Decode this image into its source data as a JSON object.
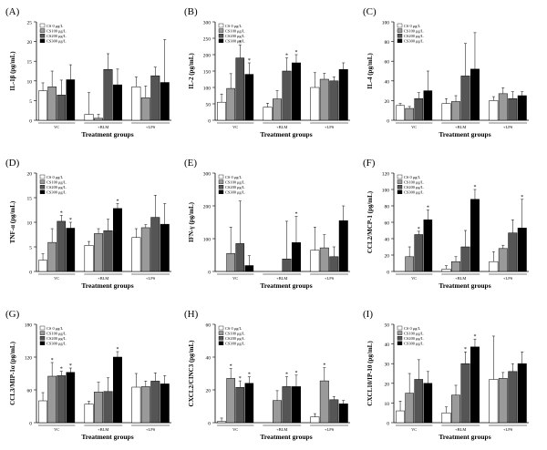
{
  "figure": {
    "series_names": [
      "CS 0 μg/L",
      "CS100 μg/L",
      "CS200 μg/L",
      "CS300 μg/L"
    ],
    "series_colors": [
      "#ffffff",
      "#9a9a9a",
      "#555555",
      "#000000"
    ],
    "groups": [
      "VC",
      "+BLM",
      "+LPS"
    ],
    "xlabel": "Treatment groups"
  },
  "chart_data": [
    {
      "type": "bar",
      "panel": "(A)",
      "ylabel": "IL-1β (pg/mL)",
      "ylim": [
        0,
        25
      ],
      "yticks": [
        0,
        5,
        10,
        15,
        20,
        25
      ],
      "categories": [
        "VC",
        "+BLM",
        "+LPS"
      ],
      "series": [
        {
          "name": "CS 0 μg/L",
          "values": [
            7.5,
            1.5,
            8.5
          ],
          "err": [
            2,
            5.5,
            2.5
          ]
        },
        {
          "name": "CS100 μg/L",
          "values": [
            8.5,
            0.5,
            5.7
          ],
          "err": [
            4,
            1,
            3
          ]
        },
        {
          "name": "CS200 μg/L",
          "values": [
            6.4,
            12.9,
            11.3
          ],
          "err": [
            3.8,
            4,
            2.2
          ]
        },
        {
          "name": "CS300 μg/L",
          "values": [
            10.3,
            9.0,
            9.6
          ],
          "err": [
            3.8,
            4,
            10.9
          ]
        }
      ],
      "sig": [
        [
          false,
          false,
          false,
          false
        ],
        [
          false,
          false,
          false,
          false
        ],
        [
          false,
          false,
          false,
          false
        ]
      ]
    },
    {
      "type": "bar",
      "panel": "(B)",
      "ylabel": "IL-2 (pg/mL)",
      "ylim": [
        0,
        300
      ],
      "yticks": [
        0,
        50,
        100,
        150,
        200,
        250,
        300
      ],
      "categories": [
        "VC",
        "+BLM",
        "+LPS"
      ],
      "series": [
        {
          "name": "CS 0 μg/L",
          "values": [
            55,
            40,
            100
          ],
          "err": [
            25,
            12,
            45
          ]
        },
        {
          "name": "CS100 μg/L",
          "values": [
            97,
            65,
            125
          ],
          "err": [
            45,
            25,
            18
          ]
        },
        {
          "name": "CS200 μg/L",
          "values": [
            190,
            150,
            120
          ],
          "err": [
            40,
            40,
            12
          ]
        },
        {
          "name": "CS300 μg/L",
          "values": [
            140,
            175,
            155
          ],
          "err": [
            35,
            25,
            20
          ]
        }
      ],
      "sig": [
        [
          false,
          false,
          true,
          true
        ],
        [
          false,
          false,
          true,
          true
        ],
        [
          false,
          false,
          false,
          false
        ]
      ]
    },
    {
      "type": "bar",
      "panel": "(C)",
      "ylabel": "IL-4 (pg/mL)",
      "ylim": [
        0,
        100
      ],
      "yticks": [
        0,
        20,
        40,
        60,
        80,
        100
      ],
      "categories": [
        "VC",
        "+BLM",
        "+LPS"
      ],
      "series": [
        {
          "name": "CS 0 μg/L",
          "values": [
            15,
            17,
            20
          ],
          "err": [
            2,
            5,
            4
          ]
        },
        {
          "name": "CS100 μg/L",
          "values": [
            12,
            19,
            27
          ],
          "err": [
            2,
            6,
            6
          ]
        },
        {
          "name": "CS200 μg/L",
          "values": [
            22,
            45,
            22
          ],
          "err": [
            6,
            33,
            7
          ]
        },
        {
          "name": "CS300 μg/L",
          "values": [
            30,
            52,
            25
          ],
          "err": [
            20,
            37,
            4
          ]
        }
      ],
      "sig": [
        [
          false,
          false,
          false,
          false
        ],
        [
          false,
          false,
          false,
          false
        ],
        [
          false,
          false,
          false,
          false
        ]
      ]
    },
    {
      "type": "bar",
      "panel": "(D)",
      "ylabel": "TNF-α (pg/mL)",
      "ylim": [
        0,
        20
      ],
      "yticks": [
        0,
        5,
        10,
        15,
        20
      ],
      "categories": [
        "VC",
        "+BLM",
        "+LPS"
      ],
      "series": [
        {
          "name": "CS 0 μg/L",
          "values": [
            2.3,
            5.3,
            6.9
          ],
          "err": [
            1.3,
            0.8,
            1.8
          ]
        },
        {
          "name": "CS100 μg/L",
          "values": [
            5.9,
            7.7,
            8.9
          ],
          "err": [
            2.8,
            1,
            0.6
          ]
        },
        {
          "name": "CS200 μg/L",
          "values": [
            10.2,
            8.3,
            11.0
          ],
          "err": [
            1.2,
            2.3,
            4.5
          ]
        },
        {
          "name": "CS300 μg/L",
          "values": [
            8.8,
            12.8,
            9.6
          ],
          "err": [
            1.2,
            1,
            4.2
          ]
        }
      ],
      "sig": [
        [
          false,
          false,
          true,
          true
        ],
        [
          false,
          false,
          false,
          true
        ],
        [
          false,
          false,
          false,
          false
        ]
      ]
    },
    {
      "type": "bar",
      "panel": "(E)",
      "ylabel": "IFN-γ (pg/mL)",
      "ylim": [
        0,
        300
      ],
      "yticks": [
        0,
        100,
        200,
        300
      ],
      "categories": [
        "VC",
        "+BLM",
        "+LPS"
      ],
      "series": [
        {
          "name": "CS 0 μg/L",
          "values": [
            0,
            0,
            65
          ],
          "err": [
            0,
            0,
            70
          ]
        },
        {
          "name": "CS100 μg/L",
          "values": [
            55,
            0,
            72
          ],
          "err": [
            80,
            0,
            40
          ]
        },
        {
          "name": "CS200 μg/L",
          "values": [
            85,
            38,
            45
          ],
          "err": [
            130,
            115,
            30
          ]
        },
        {
          "name": "CS300 μg/L",
          "values": [
            18,
            88,
            155
          ],
          "err": [
            30,
            80,
            45
          ]
        }
      ],
      "sig": [
        [
          false,
          false,
          false,
          false
        ],
        [
          false,
          false,
          false,
          true
        ],
        [
          false,
          false,
          false,
          false
        ]
      ]
    },
    {
      "type": "bar",
      "panel": "(F)",
      "ylabel": "CCL2/MCP-1 (pg/mL)",
      "ylim": [
        0,
        120
      ],
      "yticks": [
        0,
        20,
        40,
        60,
        80,
        100,
        120
      ],
      "categories": [
        "VC",
        "+BLM",
        "+LPS"
      ],
      "series": [
        {
          "name": "CS 0 μg/L",
          "values": [
            0,
            3,
            12
          ],
          "err": [
            0,
            4,
            12
          ]
        },
        {
          "name": "CS100 μg/L",
          "values": [
            18,
            12,
            28
          ],
          "err": [
            12,
            6,
            4
          ]
        },
        {
          "name": "CS200 μg/L",
          "values": [
            45,
            30,
            47
          ],
          "err": [
            4,
            20,
            16
          ]
        },
        {
          "name": "CS300 μg/L",
          "values": [
            63,
            88,
            53
          ],
          "err": [
            12,
            12,
            35
          ]
        }
      ],
      "sig": [
        [
          false,
          false,
          true,
          true
        ],
        [
          false,
          false,
          false,
          true
        ],
        [
          false,
          false,
          false,
          true
        ]
      ]
    },
    {
      "type": "bar",
      "panel": "(G)",
      "ylabel": "CCL3/MIP-1α (pg/mL)",
      "ylim": [
        0,
        180
      ],
      "yticks": [
        0,
        60,
        120,
        180
      ],
      "categories": [
        "VC",
        "+BLM",
        "+LPS"
      ],
      "series": [
        {
          "name": "CS 0 μg/L",
          "values": [
            40,
            34,
            65
          ],
          "err": [
            15,
            5,
            25
          ]
        },
        {
          "name": "CS100 μg/L",
          "values": [
            85,
            56,
            66
          ],
          "err": [
            25,
            18,
            10
          ]
        },
        {
          "name": "CS200 μg/L",
          "values": [
            86,
            57,
            76
          ],
          "err": [
            8,
            25,
            15
          ]
        },
        {
          "name": "CS300 μg/L",
          "values": [
            92,
            120,
            71
          ],
          "err": [
            8,
            10,
            15
          ]
        }
      ],
      "sig": [
        [
          false,
          true,
          true,
          true
        ],
        [
          false,
          false,
          false,
          true
        ],
        [
          false,
          false,
          false,
          false
        ]
      ]
    },
    {
      "type": "bar",
      "panel": "(H)",
      "ylabel": "CXCL2/CINC3 (pg/mL)",
      "ylim": [
        0,
        60
      ],
      "yticks": [
        0,
        20,
        40,
        60
      ],
      "categories": [
        "VC",
        "+BLM",
        "+LPS"
      ],
      "series": [
        {
          "name": "CS 0 μg/L",
          "values": [
            0.8,
            0,
            3.5
          ],
          "err": [
            2,
            0,
            2
          ]
        },
        {
          "name": "CS100 μg/L",
          "values": [
            27,
            13.5,
            25.5
          ],
          "err": [
            6,
            6,
            8
          ]
        },
        {
          "name": "CS200 μg/L",
          "values": [
            21.5,
            22,
            14
          ],
          "err": [
            4,
            6,
            2
          ]
        },
        {
          "name": "CS300 μg/L",
          "values": [
            24,
            22,
            11.5
          ],
          "err": [
            4,
            7,
            2
          ]
        }
      ],
      "sig": [
        [
          false,
          true,
          true,
          true
        ],
        [
          false,
          false,
          true,
          true
        ],
        [
          false,
          true,
          false,
          false
        ]
      ]
    },
    {
      "type": "bar",
      "panel": "(I)",
      "ylabel": "CXCL10/IP-10 (pg/mL)",
      "ylim": [
        0,
        50
      ],
      "yticks": [
        0,
        10,
        20,
        30,
        40,
        50
      ],
      "categories": [
        "VC",
        "+BLM",
        "+LPS"
      ],
      "series": [
        {
          "name": "CS 0 μg/L",
          "values": [
            6,
            5,
            22
          ],
          "err": [
            5,
            3,
            22
          ]
        },
        {
          "name": "CS100 μg/L",
          "values": [
            15,
            14,
            22.5
          ],
          "err": [
            10,
            5,
            3
          ]
        },
        {
          "name": "CS200 μg/L",
          "values": [
            22,
            30,
            26
          ],
          "err": [
            10,
            6,
            4
          ]
        },
        {
          "name": "CS300 μg/L",
          "values": [
            20,
            38.5,
            30
          ],
          "err": [
            6,
            4,
            6
          ]
        }
      ],
      "sig": [
        [
          false,
          false,
          false,
          false
        ],
        [
          false,
          false,
          true,
          true
        ],
        [
          false,
          false,
          false,
          false
        ]
      ]
    }
  ]
}
